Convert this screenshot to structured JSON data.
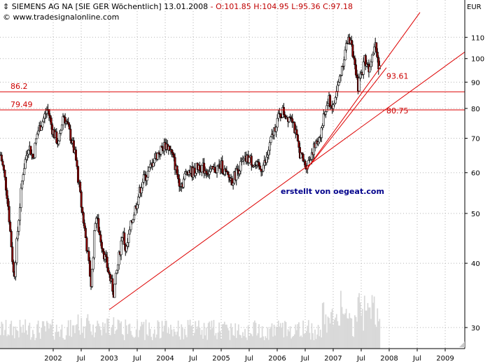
{
  "header": {
    "title": "SIEMENS AG NA [SIE GER  Wöchentlich] 13.01.2008",
    "ohlc": "- O:101.85 H:104.95 L:95.36 C:97.18",
    "copyright": "© www.tradesignalonline.com",
    "currency": "EUR",
    "credit": "erstellt von oegeat.com"
  },
  "colors": {
    "candle_up": "#ffffff",
    "candle_down": "#8b0000",
    "candle_outline": "#000000",
    "line": "#dd0000",
    "level_label": "#cc0000",
    "volume": "#d9d9d9",
    "grid": "#b5b5b5",
    "credit": "#00008b"
  },
  "chart_data": {
    "type": "candlestick",
    "series": "weekly",
    "y_scale": "log",
    "ylim": [
      27.3,
      130
    ],
    "xlim": [
      2001.05,
      2009.35
    ],
    "y_ticks": [
      30,
      40,
      50,
      60,
      70,
      80,
      90,
      100,
      110
    ],
    "x_ticks": [
      {
        "label": "2002",
        "x": 2002.0
      },
      {
        "label": "Jul",
        "x": 2002.5
      },
      {
        "label": "2003",
        "x": 2003.0
      },
      {
        "label": "Jul",
        "x": 2003.5
      },
      {
        "label": "2004",
        "x": 2004.0
      },
      {
        "label": "Jul",
        "x": 2004.5
      },
      {
        "label": "2005",
        "x": 2005.0
      },
      {
        "label": "Jul",
        "x": 2005.5
      },
      {
        "label": "2006",
        "x": 2006.0
      },
      {
        "label": "Jul",
        "x": 2006.5
      },
      {
        "label": "2007",
        "x": 2007.0
      },
      {
        "label": "Jul",
        "x": 2007.5
      },
      {
        "label": "2008",
        "x": 2008.0
      },
      {
        "label": "Jul",
        "x": 2008.5
      },
      {
        "label": "2009",
        "x": 2009.0
      }
    ],
    "path_points": [
      [
        2001.06,
        65
      ],
      [
        2001.12,
        60
      ],
      [
        2001.18,
        54
      ],
      [
        2001.24,
        45
      ],
      [
        2001.3,
        37
      ],
      [
        2001.38,
        48
      ],
      [
        2001.46,
        60
      ],
      [
        2001.56,
        68
      ],
      [
        2001.64,
        64
      ],
      [
        2001.72,
        72
      ],
      [
        2001.82,
        76
      ],
      [
        2001.9,
        80
      ],
      [
        2001.98,
        73
      ],
      [
        2002.1,
        68
      ],
      [
        2002.18,
        78
      ],
      [
        2002.24,
        75
      ],
      [
        2002.32,
        70
      ],
      [
        2002.4,
        64
      ],
      [
        2002.5,
        52
      ],
      [
        2002.6,
        43
      ],
      [
        2002.68,
        36
      ],
      [
        2002.76,
        50
      ],
      [
        2002.82,
        46
      ],
      [
        2002.9,
        42
      ],
      [
        2003.0,
        38
      ],
      [
        2003.08,
        35
      ],
      [
        2003.16,
        40
      ],
      [
        2003.24,
        46
      ],
      [
        2003.3,
        42
      ],
      [
        2003.4,
        48
      ],
      [
        2003.5,
        53
      ],
      [
        2003.6,
        58
      ],
      [
        2003.7,
        60
      ],
      [
        2003.8,
        64
      ],
      [
        2003.9,
        66
      ],
      [
        2004.0,
        68
      ],
      [
        2004.08,
        67
      ],
      [
        2004.16,
        63
      ],
      [
        2004.24,
        58
      ],
      [
        2004.3,
        57
      ],
      [
        2004.4,
        61
      ],
      [
        2004.5,
        60
      ],
      [
        2004.6,
        62
      ],
      [
        2004.7,
        61
      ],
      [
        2004.8,
        60
      ],
      [
        2004.9,
        61
      ],
      [
        2005.0,
        62
      ],
      [
        2005.1,
        59
      ],
      [
        2005.2,
        58
      ],
      [
        2005.3,
        61
      ],
      [
        2005.4,
        63
      ],
      [
        2005.5,
        64
      ],
      [
        2005.6,
        62
      ],
      [
        2005.7,
        61
      ],
      [
        2005.8,
        63
      ],
      [
        2005.9,
        70
      ],
      [
        2006.0,
        76
      ],
      [
        2006.1,
        79
      ],
      [
        2006.18,
        77
      ],
      [
        2006.26,
        78
      ],
      [
        2006.32,
        72
      ],
      [
        2006.38,
        67
      ],
      [
        2006.44,
        64
      ],
      [
        2006.5,
        62
      ],
      [
        2006.56,
        63
      ],
      [
        2006.62,
        66
      ],
      [
        2006.7,
        68
      ],
      [
        2006.78,
        72
      ],
      [
        2006.86,
        79
      ],
      [
        2006.92,
        83
      ],
      [
        2007.0,
        80
      ],
      [
        2007.06,
        86
      ],
      [
        2007.12,
        92
      ],
      [
        2007.2,
        102
      ],
      [
        2007.26,
        108
      ],
      [
        2007.32,
        110
      ],
      [
        2007.38,
        96
      ],
      [
        2007.44,
        88
      ],
      [
        2007.5,
        93
      ],
      [
        2007.56,
        100
      ],
      [
        2007.64,
        96
      ],
      [
        2007.7,
        104
      ],
      [
        2007.76,
        108
      ],
      [
        2007.8,
        98
      ],
      [
        2007.84,
        97
      ]
    ],
    "horizontal_lines": [
      {
        "value": 86.2,
        "label": "86.2"
      },
      {
        "value": 79.49,
        "label": "79.49"
      }
    ],
    "trendlines": [
      {
        "from": [
          2003.0,
          32.5
        ],
        "to": [
          2009.35,
          103.0
        ],
        "label": "80.75",
        "label_at": [
          2007.95,
          79.2
        ]
      },
      {
        "from": [
          2006.52,
          60.8
        ],
        "to": [
          2008.55,
          123.0
        ],
        "label": "93.61",
        "label_at": [
          2007.95,
          92.5
        ]
      },
      {
        "from": [
          2006.52,
          60.8
        ],
        "to": [
          2007.95,
          96.0
        ],
        "label": "",
        "label_at": null
      }
    ]
  }
}
